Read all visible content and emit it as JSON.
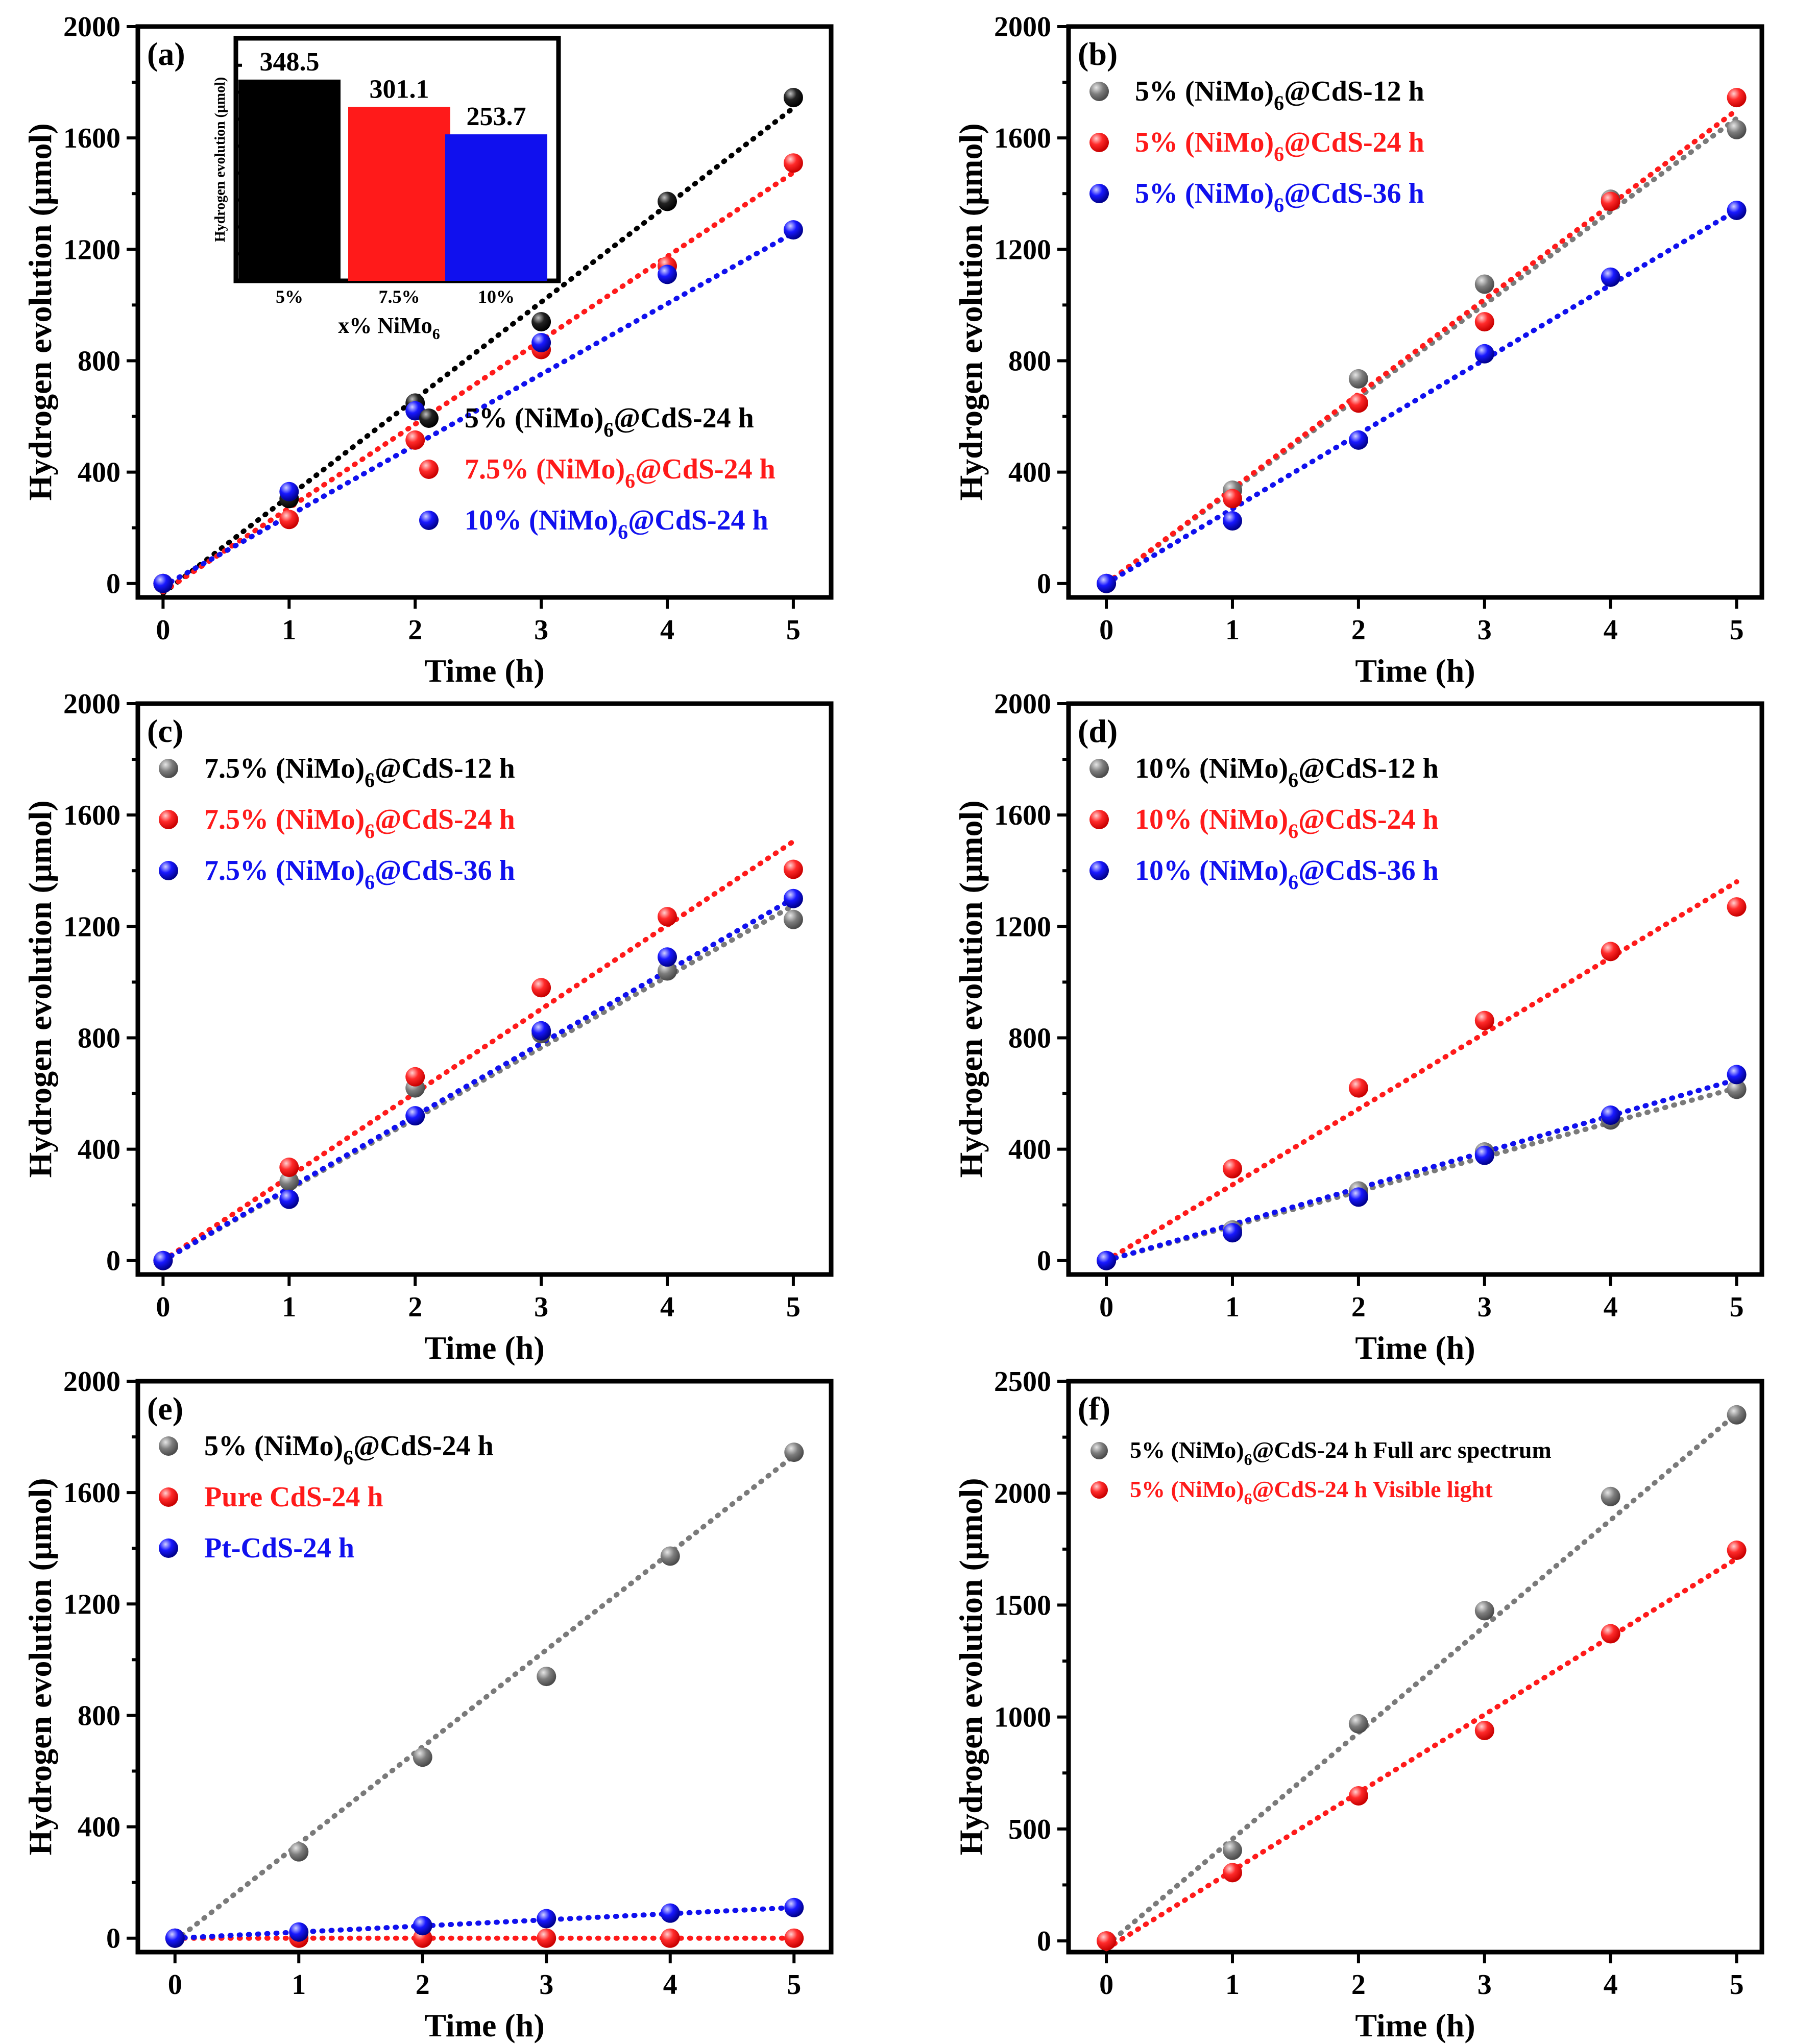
{
  "figure_name": "hydrogen-evolution-figure",
  "colors": {
    "black": "#000000",
    "gray": "#7a7a7a",
    "red": "#ff1a1a",
    "blue": "#1010ee"
  },
  "chart_data": [
    {
      "id": "a",
      "type": "scatter",
      "panel_label": "(a)",
      "xlabel": "Time (h)",
      "ylabel": "Hydrogen evolution (μmol)",
      "xlim": [
        -0.2,
        5.3
      ],
      "ylim": [
        -50,
        2000
      ],
      "xticks": [
        0,
        1,
        2,
        3,
        4,
        5
      ],
      "yticks": [
        0,
        400,
        800,
        1200,
        1600,
        2000
      ],
      "legend_position": "bottom-right",
      "series": [
        {
          "name": "5% (NiMo)6@CdS-24 h",
          "name_main": "5% (NiMo)",
          "name_sub": "6",
          "name_tail": "@CdS-24 h",
          "color": "black",
          "legend_text_color": "black",
          "x": [
            0,
            1,
            2,
            3,
            4,
            5
          ],
          "y": [
            0,
            305,
            648,
            940,
            1372,
            1745
          ],
          "fit": [
            -35,
            348.5
          ]
        },
        {
          "name": "7.5% (NiMo)6@CdS-24 h",
          "name_main": "7.5% (NiMo)",
          "name_sub": "6",
          "name_tail": "@CdS-24 h",
          "color": "red",
          "legend_text_color": "red",
          "x": [
            0,
            1,
            2,
            3,
            4,
            5
          ],
          "y": [
            0,
            230,
            515,
            840,
            1140,
            1510
          ],
          "fit": [
            -30,
            301.1
          ]
        },
        {
          "name": "10% (NiMo)6@CdS-24 h",
          "name_main": "10% (NiMo)",
          "name_sub": "6",
          "name_tail": "@CdS-24 h",
          "color": "blue",
          "legend_text_color": "blue",
          "x": [
            0,
            1,
            2,
            3,
            4,
            5
          ],
          "y": [
            0,
            330,
            620,
            865,
            1110,
            1270
          ],
          "fit": [
            -10,
            253.7
          ]
        }
      ],
      "inset": {
        "type": "bar",
        "categories": [
          "5%",
          "7.5%",
          "10%"
        ],
        "values": [
          348.5,
          301.1,
          253.7
        ],
        "value_labels": [
          "348.5",
          "301.1",
          "253.7"
        ],
        "colors": [
          "black",
          "red",
          "blue"
        ],
        "xlabel_main": "x% NiMo",
        "xlabel_sub": "6",
        "ylabel": "Hydrogen evolution (μmol)",
        "ylim": [
          0,
          420
        ]
      }
    },
    {
      "id": "b",
      "type": "scatter",
      "panel_label": "(b)",
      "xlabel": "Time (h)",
      "ylabel": "Hydrogen evolution (μmol)",
      "xlim": [
        -0.3,
        5.2
      ],
      "ylim": [
        -50,
        2000
      ],
      "xticks": [
        0,
        1,
        2,
        3,
        4,
        5
      ],
      "yticks": [
        0,
        400,
        800,
        1200,
        1600,
        2000
      ],
      "legend_position": "top-left",
      "series": [
        {
          "name": "5% (NiMo)6@CdS-12 h",
          "name_main": "5% (NiMo)",
          "name_sub": "6",
          "name_tail": "@CdS-12 h",
          "color": "gray",
          "legend_text_color": "black",
          "x": [
            0,
            1,
            2,
            3,
            4,
            5
          ],
          "y": [
            0,
            335,
            735,
            1075,
            1380,
            1630
          ],
          "fit": [
            0,
            334
          ]
        },
        {
          "name": "5% (NiMo)6@CdS-24 h",
          "name_main": "5% (NiMo)",
          "name_sub": "6",
          "name_tail": "@CdS-24 h",
          "color": "red",
          "legend_text_color": "red",
          "x": [
            0,
            1,
            2,
            3,
            4,
            5
          ],
          "y": [
            0,
            305,
            648,
            940,
            1372,
            1745
          ],
          "fit": [
            0,
            340
          ]
        },
        {
          "name": "5% (NiMo)6@CdS-36 h",
          "name_main": "5% (NiMo)",
          "name_sub": "6",
          "name_tail": "@CdS-36 h",
          "color": "blue",
          "legend_text_color": "blue",
          "x": [
            0,
            1,
            2,
            3,
            4,
            5
          ],
          "y": [
            0,
            225,
            515,
            825,
            1100,
            1340
          ],
          "fit": [
            0,
            268
          ]
        }
      ]
    },
    {
      "id": "c",
      "type": "scatter",
      "panel_label": "(c)",
      "xlabel": "Time (h)",
      "ylabel": "Hydrogen evolution (μmol)",
      "xlim": [
        -0.2,
        5.3
      ],
      "ylim": [
        -50,
        2000
      ],
      "xticks": [
        0,
        1,
        2,
        3,
        4,
        5
      ],
      "yticks": [
        0,
        400,
        800,
        1200,
        1600,
        2000
      ],
      "legend_position": "top-left",
      "series": [
        {
          "name": "7.5% (NiMo)6@CdS-12 h",
          "name_main": "7.5% (NiMo)",
          "name_sub": "6",
          "name_tail": "@CdS-12 h",
          "color": "gray",
          "legend_text_color": "black",
          "x": [
            0,
            1,
            2,
            3,
            4,
            5
          ],
          "y": [
            0,
            285,
            620,
            815,
            1040,
            1225
          ],
          "fit": [
            0,
            255
          ]
        },
        {
          "name": "7.5% (NiMo)6@CdS-24 h",
          "name_main": "7.5% (NiMo)",
          "name_sub": "6",
          "name_tail": "@CdS-24 h",
          "color": "red",
          "legend_text_color": "red",
          "x": [
            0,
            1,
            2,
            3,
            4,
            5
          ],
          "y": [
            0,
            335,
            660,
            980,
            1235,
            1405
          ],
          "fit": [
            0,
            301
          ]
        },
        {
          "name": "7.5% (NiMo)6@CdS-36 h",
          "name_main": "7.5% (NiMo)",
          "name_sub": "6",
          "name_tail": "@CdS-36 h",
          "color": "blue",
          "legend_text_color": "blue",
          "x": [
            0,
            1,
            2,
            3,
            4,
            5
          ],
          "y": [
            0,
            220,
            520,
            825,
            1090,
            1300
          ],
          "fit": [
            0,
            260
          ]
        }
      ]
    },
    {
      "id": "d",
      "type": "scatter",
      "panel_label": "(d)",
      "xlabel": "Time (h)",
      "ylabel": "Hydrogen evolution (μmol)",
      "xlim": [
        -0.3,
        5.2
      ],
      "ylim": [
        -50,
        2000
      ],
      "xticks": [
        0,
        1,
        2,
        3,
        4,
        5
      ],
      "yticks": [
        0,
        400,
        800,
        1200,
        1600,
        2000
      ],
      "legend_position": "top-left",
      "series": [
        {
          "name": "10% (NiMo)6@CdS-12 h",
          "name_main": "10% (NiMo)",
          "name_sub": "6",
          "name_tail": "@CdS-12 h",
          "color": "gray",
          "legend_text_color": "black",
          "x": [
            0,
            1,
            2,
            3,
            4,
            5
          ],
          "y": [
            0,
            110,
            250,
            390,
            505,
            615
          ],
          "fit": [
            0,
            124
          ]
        },
        {
          "name": "10% (NiMo)6@CdS-24 h",
          "name_main": "10% (NiMo)",
          "name_sub": "6",
          "name_tail": "@CdS-24 h",
          "color": "red",
          "legend_text_color": "red",
          "x": [
            0,
            1,
            2,
            3,
            4,
            5
          ],
          "y": [
            0,
            330,
            620,
            862,
            1110,
            1270
          ],
          "fit": [
            0,
            272
          ]
        },
        {
          "name": "10% (NiMo)6@CdS-36 h",
          "name_main": "10% (NiMo)",
          "name_sub": "6",
          "name_tail": "@CdS-36 h",
          "color": "blue",
          "legend_text_color": "blue",
          "x": [
            0,
            1,
            2,
            3,
            4,
            5
          ],
          "y": [
            0,
            100,
            228,
            378,
            522,
            668
          ],
          "fit": [
            0,
            130
          ]
        }
      ]
    },
    {
      "id": "e",
      "type": "scatter",
      "panel_label": "(e)",
      "xlabel": "Time (h)",
      "ylabel": "Hydrogen evolution (μmol)",
      "xlim": [
        -0.3,
        5.3
      ],
      "ylim": [
        -50,
        2000
      ],
      "xticks": [
        0,
        1,
        2,
        3,
        4,
        5
      ],
      "yticks": [
        0,
        400,
        800,
        1200,
        1600,
        2000
      ],
      "legend_position": "top-left",
      "series": [
        {
          "name": "5% (NiMo)6@CdS-24 h",
          "name_main": "5% (NiMo)",
          "name_sub": "6",
          "name_tail": "@CdS-24 h",
          "color": "gray",
          "legend_text_color": "black",
          "x": [
            0,
            1,
            2,
            3,
            4,
            5
          ],
          "y": [
            0,
            310,
            650,
            940,
            1372,
            1745
          ],
          "fit": [
            -10,
            348.5
          ]
        },
        {
          "name": "Pure CdS-24 h",
          "name_main": "Pure CdS-24 h",
          "name_sub": "",
          "name_tail": "",
          "color": "red",
          "legend_text_color": "red",
          "x": [
            0,
            1,
            2,
            3,
            4,
            5
          ],
          "y": [
            0,
            0,
            0,
            0,
            0,
            0
          ],
          "fit": [
            0,
            0
          ]
        },
        {
          "name": "Pt-CdS-24 h",
          "name_main": "Pt-CdS-24 h",
          "name_sub": "",
          "name_tail": "",
          "color": "blue",
          "legend_text_color": "blue",
          "x": [
            0,
            1,
            2,
            3,
            4,
            5
          ],
          "y": [
            0,
            22,
            45,
            70,
            90,
            110
          ],
          "fit": [
            0,
            22
          ]
        }
      ]
    },
    {
      "id": "f",
      "type": "scatter",
      "panel_label": "(f)",
      "xlabel": "Time (h)",
      "ylabel": "Hydrogen evolution (μmol)",
      "xlim": [
        -0.3,
        5.2
      ],
      "ylim": [
        -50,
        2500
      ],
      "xticks": [
        0,
        1,
        2,
        3,
        4,
        5
      ],
      "yticks": [
        0,
        500,
        1000,
        1500,
        2000,
        2500
      ],
      "legend_position": "top-left",
      "legend_small": true,
      "series": [
        {
          "name": "5% (NiMo)6@CdS-24 h Full arc spectrum",
          "name_main": "5% (NiMo)",
          "name_sub": "6",
          "name_tail": "@CdS-24 h Full arc spectrum",
          "color": "gray",
          "legend_text_color": "black",
          "x": [
            0,
            1,
            2,
            3,
            4,
            5
          ],
          "y": [
            0,
            405,
            970,
            1475,
            1985,
            2350
          ],
          "fit": [
            -20,
            475
          ]
        },
        {
          "name": "5% (NiMo)6@CdS-24 h Visible light",
          "name_main": "5% (NiMo)",
          "name_sub": "6",
          "name_tail": "@CdS-24 h Visible light",
          "color": "red",
          "legend_text_color": "red",
          "x": [
            0,
            1,
            2,
            3,
            4,
            5
          ],
          "y": [
            0,
            305,
            648,
            940,
            1372,
            1745
          ],
          "fit": [
            -35,
            348.5
          ]
        }
      ]
    }
  ]
}
